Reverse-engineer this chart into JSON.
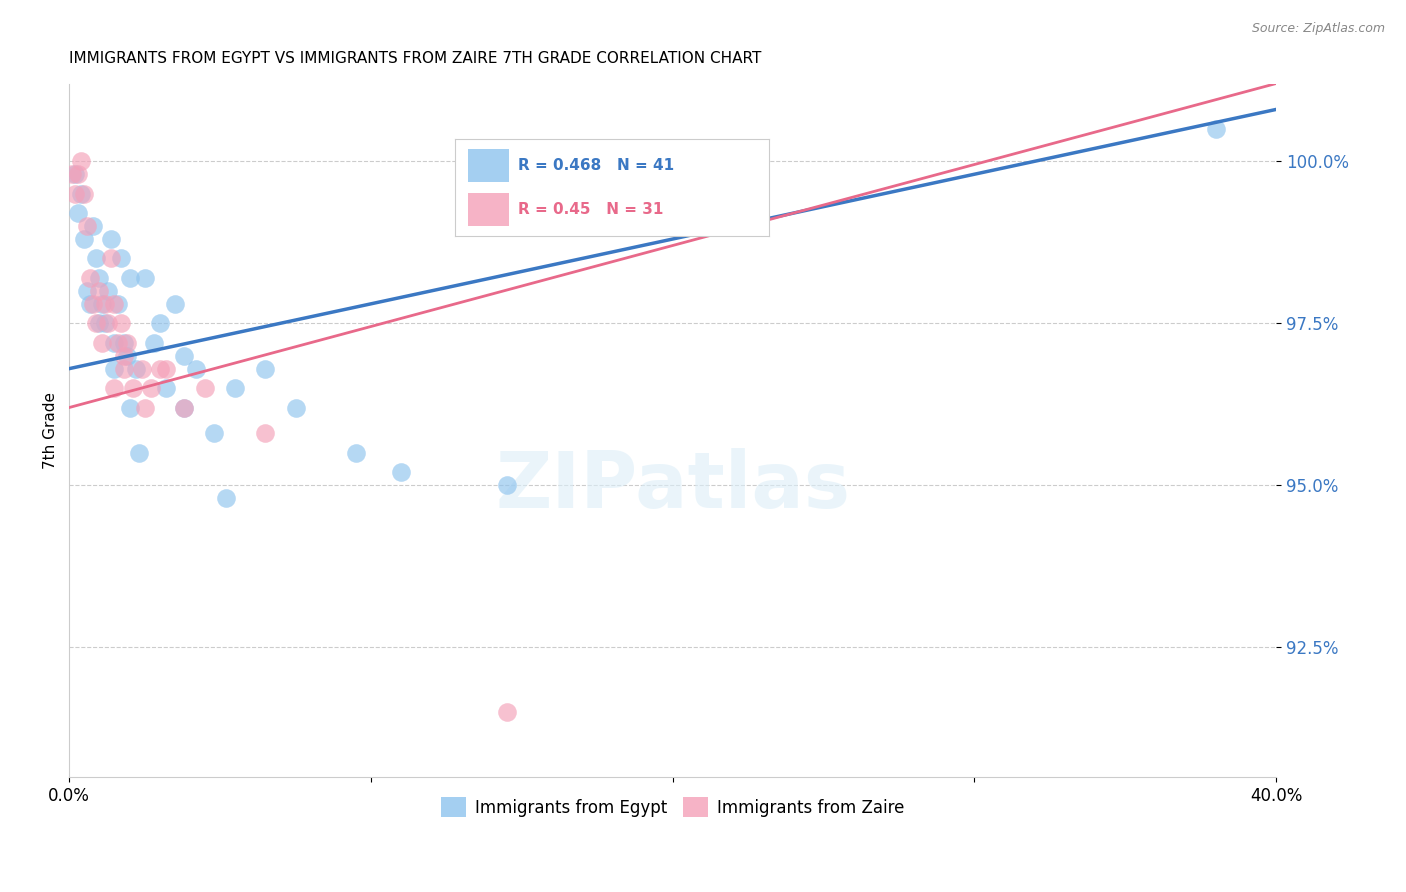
{
  "title": "IMMIGRANTS FROM EGYPT VS IMMIGRANTS FROM ZAIRE 7TH GRADE CORRELATION CHART",
  "source": "Source: ZipAtlas.com",
  "ylabel": "7th Grade",
  "xlim": [
    0.0,
    40.0
  ],
  "ylim": [
    90.5,
    101.2
  ],
  "yticks": [
    92.5,
    95.0,
    97.5,
    100.0
  ],
  "ytick_labels": [
    "92.5%",
    "95.0%",
    "97.5%",
    "100.0%"
  ],
  "xticks": [
    0.0,
    10.0,
    20.0,
    30.0,
    40.0
  ],
  "xtick_labels": [
    "0.0%",
    "",
    "",
    "",
    "40.0%"
  ],
  "egypt_R": 0.468,
  "egypt_N": 41,
  "zaire_R": 0.45,
  "zaire_N": 31,
  "egypt_color": "#8EC3EE",
  "zaire_color": "#F4A0B8",
  "egypt_line_color": "#3B78C3",
  "zaire_line_color": "#E8698A",
  "legend_egypt": "Immigrants from Egypt",
  "legend_zaire": "Immigrants from Zaire",
  "egypt_x": [
    0.2,
    0.4,
    0.5,
    0.7,
    0.8,
    0.9,
    1.0,
    1.0,
    1.1,
    1.2,
    1.3,
    1.4,
    1.5,
    1.6,
    1.7,
    1.8,
    1.9,
    2.0,
    2.2,
    2.5,
    2.8,
    3.0,
    3.2,
    3.5,
    3.8,
    4.2,
    4.8,
    5.5,
    6.5,
    7.5,
    9.5,
    11.0,
    38.0
  ],
  "egypt_y": [
    99.8,
    99.5,
    98.8,
    97.8,
    99.0,
    98.5,
    97.5,
    98.2,
    97.8,
    97.5,
    98.0,
    98.8,
    97.2,
    97.8,
    98.5,
    97.2,
    97.0,
    98.2,
    96.8,
    98.2,
    97.2,
    97.5,
    96.5,
    97.8,
    96.2,
    96.8,
    95.8,
    96.5,
    96.8,
    96.2,
    95.5,
    95.2,
    100.5
  ],
  "egypt_x2": [
    0.3,
    0.6,
    1.5,
    2.0,
    2.3,
    3.8,
    5.2,
    14.5
  ],
  "egypt_y2": [
    99.2,
    98.0,
    96.8,
    96.2,
    95.5,
    97.0,
    94.8,
    95.0
  ],
  "zaire_x": [
    0.1,
    0.2,
    0.3,
    0.4,
    0.5,
    0.6,
    0.7,
    0.8,
    0.9,
    1.0,
    1.1,
    1.2,
    1.3,
    1.4,
    1.5,
    1.6,
    1.7,
    1.8,
    1.9,
    2.1,
    2.4,
    2.7,
    3.2,
    3.8,
    1.5,
    1.8,
    2.5,
    3.0,
    4.5,
    6.5,
    14.5
  ],
  "zaire_y": [
    99.8,
    99.5,
    99.8,
    100.0,
    99.5,
    99.0,
    98.2,
    97.8,
    97.5,
    98.0,
    97.2,
    97.8,
    97.5,
    98.5,
    97.8,
    97.2,
    97.5,
    97.0,
    97.2,
    96.5,
    96.8,
    96.5,
    96.8,
    96.2,
    96.5,
    96.8,
    96.2,
    96.8,
    96.5,
    95.8,
    91.5
  ],
  "egypt_trendline_x": [
    0.0,
    40.0
  ],
  "egypt_trendline_y": [
    96.8,
    100.8
  ],
  "zaire_trendline_x": [
    0.0,
    40.0
  ],
  "zaire_trendline_y": [
    96.2,
    101.2
  ]
}
